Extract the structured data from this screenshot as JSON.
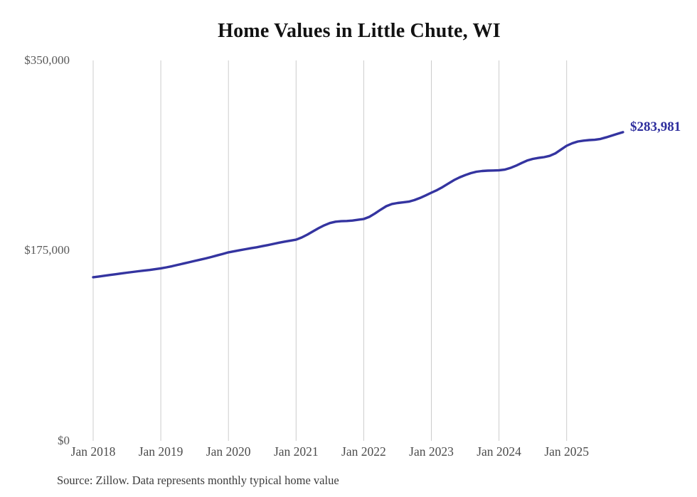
{
  "page": {
    "background": "#ffffff"
  },
  "header": {
    "title": "Home Values in Little Chute, WI"
  },
  "annotation": {
    "latest_value_label": "$283,981"
  },
  "footer": {
    "source_note": "Source: Zillow. Data represents monthly typical home value"
  },
  "colors": {
    "line": "#3434a0",
    "latest_label": "#2e2e9d",
    "gridline": "#cccccc",
    "y_tick_text": "#595959",
    "x_tick_text": "#4c4c4c",
    "title_text": "#121212",
    "source_text": "#3c3c3c",
    "background": "#ffffff"
  },
  "chart_data": {
    "type": "line",
    "title": "Home Values in Little Chute, WI",
    "x_unit": "month",
    "x_start": "Jan 2018",
    "x_end": "Nov 2025",
    "x_tick_labels": [
      "Jan 2018",
      "Jan 2019",
      "Jan 2020",
      "Jan 2021",
      "Jan 2022",
      "Jan 2023",
      "Jan 2024",
      "Jan 2025"
    ],
    "y_tick_labels": [
      "$0",
      "$175,000",
      "$350,000"
    ],
    "ylim": [
      0,
      350000
    ],
    "grid": "vertical gridlines at each January only, no horizontal gridlines",
    "legend": "none",
    "latest_value": 283981,
    "series": [
      {
        "name": "Monthly typical home value",
        "values": [
          150500,
          151200,
          151900,
          152600,
          153300,
          154000,
          154700,
          155400,
          156000,
          156600,
          157200,
          157900,
          158700,
          159600,
          160700,
          161900,
          163100,
          164300,
          165500,
          166700,
          167900,
          169200,
          170600,
          172000,
          173400,
          174400,
          175400,
          176300,
          177200,
          178100,
          179100,
          180100,
          181200,
          182300,
          183300,
          184200,
          185100,
          187100,
          189700,
          192700,
          195700,
          198300,
          200400,
          201600,
          202100,
          202300,
          202700,
          203400,
          204100,
          206100,
          209200,
          212700,
          215900,
          217900,
          218800,
          219400,
          220100,
          221500,
          223500,
          225800,
          228300,
          230700,
          233500,
          236700,
          239800,
          242400,
          244500,
          246300,
          247600,
          248300,
          248600,
          248700,
          248900,
          249500,
          251000,
          253100,
          255600,
          257900,
          259400,
          260300,
          261000,
          262200,
          264500,
          268000,
          271500,
          273800,
          275400,
          276200,
          276700,
          277000,
          277800,
          279200,
          280800,
          282400,
          283981
        ]
      }
    ]
  }
}
